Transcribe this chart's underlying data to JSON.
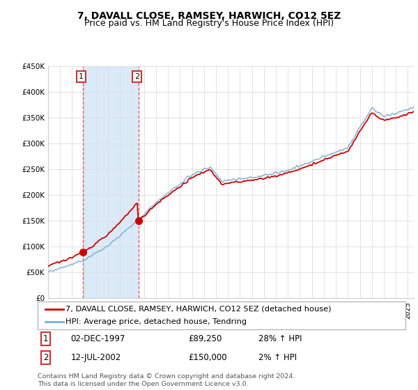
{
  "title": "7, DAVALL CLOSE, RAMSEY, HARWICH, CO12 5EZ",
  "subtitle": "Price paid vs. HM Land Registry's House Price Index (HPI)",
  "ylim": [
    0,
    450000
  ],
  "yticks": [
    0,
    50000,
    100000,
    150000,
    200000,
    250000,
    300000,
    350000,
    400000,
    450000
  ],
  "ytick_labels": [
    "£0",
    "£50K",
    "£100K",
    "£150K",
    "£200K",
    "£250K",
    "£300K",
    "£350K",
    "£400K",
    "£450K"
  ],
  "sale1_date": 1997.917,
  "sale1_price": 89250,
  "sale1_label": "1",
  "sale2_date": 2002.54,
  "sale2_price": 150000,
  "sale2_label": "2",
  "hpi_color": "#7aadd4",
  "price_color": "#cc0000",
  "shaded_color": "#daeaf8",
  "legend_line1": "7, DAVALL CLOSE, RAMSEY, HARWICH, CO12 5EZ (detached house)",
  "legend_line2": "HPI: Average price, detached house, Tendring",
  "table_row1": [
    "1",
    "02-DEC-1997",
    "£89,250",
    "28% ↑ HPI"
  ],
  "table_row2": [
    "2",
    "12-JUL-2002",
    "£150,000",
    "2% ↑ HPI"
  ],
  "footer": "Contains HM Land Registry data © Crown copyright and database right 2024.\nThis data is licensed under the Open Government Licence v3.0.",
  "title_fontsize": 10,
  "subtitle_fontsize": 9,
  "axis_fontsize": 8,
  "tick_fontsize": 7.5
}
